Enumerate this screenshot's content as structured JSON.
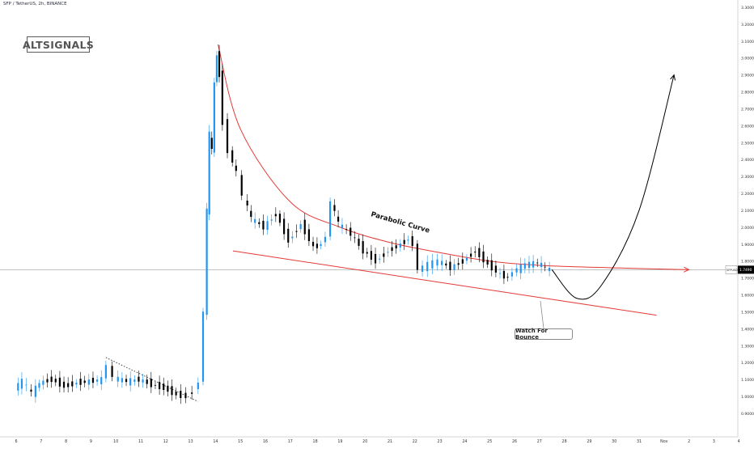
{
  "symbol_title": "SFP / TetherUS, 2h, BINANCE",
  "brand_label": "ALTSIGNALS",
  "annotations": {
    "curve_label": "Parabolic Curve",
    "callout_label": "Watch For Bounce"
  },
  "price_tag": {
    "symbol": "SFPUSDT",
    "price": "1.7490"
  },
  "colors": {
    "background": "#ffffff",
    "candle_up": "#2196f3",
    "candle_down": "#000000",
    "trendline": "#e53935",
    "projection": "#000000",
    "axis_text": "#333333",
    "price_tag_bg": "#000000"
  },
  "chart_data": {
    "type": "candlestick",
    "title": "SFP / TetherUS, 2h, BINANCE",
    "ylim": [
      0.8,
      3.3
    ],
    "y_ticks": [
      "0.9000",
      "1.0000",
      "1.1000",
      "1.2000",
      "1.3000",
      "1.4000",
      "1.5000",
      "1.6000",
      "1.7000",
      "1.8000",
      "1.9000",
      "2.0000",
      "2.1000",
      "2.2000",
      "2.3000",
      "2.4000",
      "2.5000",
      "2.6000",
      "2.7000",
      "2.8000",
      "2.9000",
      "3.0000",
      "3.1000",
      "3.2000",
      "3.3000"
    ],
    "x_ticks": [
      "6",
      "7",
      "8",
      "9",
      "10",
      "11",
      "12",
      "13",
      "14",
      "15",
      "16",
      "17",
      "18",
      "19",
      "20",
      "21",
      "22",
      "23",
      "24",
      "25",
      "26",
      "27",
      "28",
      "29",
      "30",
      "31",
      "Nov",
      "2",
      "3",
      "4"
    ],
    "grid": false,
    "last_price": 1.749,
    "series_close": [
      {
        "x": 0.0,
        "y": 1.05
      },
      {
        "x": 0.3,
        "y": 1.09
      },
      {
        "x": 0.7,
        "y": 1.02
      },
      {
        "x": 1.0,
        "y": 1.08
      },
      {
        "x": 1.5,
        "y": 1.1
      },
      {
        "x": 2.0,
        "y": 1.06
      },
      {
        "x": 2.5,
        "y": 1.08
      },
      {
        "x": 3.0,
        "y": 1.09
      },
      {
        "x": 3.5,
        "y": 1.1
      },
      {
        "x": 3.7,
        "y": 1.19
      },
      {
        "x": 4.0,
        "y": 1.11
      },
      {
        "x": 4.5,
        "y": 1.09
      },
      {
        "x": 5.0,
        "y": 1.1
      },
      {
        "x": 5.5,
        "y": 1.07
      },
      {
        "x": 6.0,
        "y": 1.05
      },
      {
        "x": 6.5,
        "y": 1.01
      },
      {
        "x": 6.9,
        "y": 1.0
      },
      {
        "x": 7.2,
        "y": 1.03
      },
      {
        "x": 7.4,
        "y": 1.09
      },
      {
        "x": 7.6,
        "y": 1.5
      },
      {
        "x": 7.7,
        "y": 2.1
      },
      {
        "x": 7.8,
        "y": 2.55
      },
      {
        "x": 7.9,
        "y": 2.45
      },
      {
        "x": 8.0,
        "y": 2.85
      },
      {
        "x": 8.1,
        "y": 3.02
      },
      {
        "x": 8.2,
        "y": 2.9
      },
      {
        "x": 8.35,
        "y": 2.62
      },
      {
        "x": 8.6,
        "y": 2.45
      },
      {
        "x": 8.9,
        "y": 2.32
      },
      {
        "x": 9.2,
        "y": 2.18
      },
      {
        "x": 9.5,
        "y": 2.05
      },
      {
        "x": 10.0,
        "y": 2.0
      },
      {
        "x": 10.5,
        "y": 2.08
      },
      {
        "x": 11.0,
        "y": 1.92
      },
      {
        "x": 11.5,
        "y": 2.02
      },
      {
        "x": 12.0,
        "y": 1.88
      },
      {
        "x": 12.3,
        "y": 1.9
      },
      {
        "x": 12.5,
        "y": 1.95
      },
      {
        "x": 12.7,
        "y": 2.15
      },
      {
        "x": 13.0,
        "y": 2.02
      },
      {
        "x": 13.5,
        "y": 1.96
      },
      {
        "x": 14.0,
        "y": 1.86
      },
      {
        "x": 14.5,
        "y": 1.8
      },
      {
        "x": 15.0,
        "y": 1.86
      },
      {
        "x": 15.5,
        "y": 1.9
      },
      {
        "x": 15.8,
        "y": 1.93
      },
      {
        "x": 16.0,
        "y": 1.9
      },
      {
        "x": 16.2,
        "y": 1.75
      },
      {
        "x": 16.6,
        "y": 1.78
      },
      {
        "x": 17.0,
        "y": 1.8
      },
      {
        "x": 17.5,
        "y": 1.76
      },
      {
        "x": 18.0,
        "y": 1.8
      },
      {
        "x": 18.5,
        "y": 1.86
      },
      {
        "x": 19.0,
        "y": 1.78
      },
      {
        "x": 19.5,
        "y": 1.72
      },
      {
        "x": 19.8,
        "y": 1.7
      },
      {
        "x": 20.0,
        "y": 1.74
      },
      {
        "x": 20.5,
        "y": 1.78
      },
      {
        "x": 21.0,
        "y": 1.79
      },
      {
        "x": 21.3,
        "y": 1.76
      },
      {
        "x": 21.5,
        "y": 1.749
      }
    ],
    "overlays": [
      {
        "type": "line",
        "label": "",
        "points": [
          [
            3.6,
            1.23
          ],
          [
            7.3,
            0.97
          ]
        ],
        "style": "dotted"
      },
      {
        "type": "curve",
        "label": "Parabolic Curve",
        "points": [
          [
            8.1,
            3.08
          ],
          [
            9.0,
            2.58
          ],
          [
            11.0,
            2.15
          ],
          [
            13.0,
            2.0
          ],
          [
            15.0,
            1.91
          ],
          [
            17.0,
            1.85
          ],
          [
            19.0,
            1.8
          ],
          [
            21.0,
            1.775
          ],
          [
            24.0,
            1.76
          ],
          [
            27.0,
            1.749
          ]
        ]
      },
      {
        "type": "line",
        "label": "",
        "points": [
          [
            8.7,
            1.86
          ],
          [
            25.7,
            1.48
          ]
        ]
      },
      {
        "type": "projection",
        "label": "",
        "points": [
          [
            21.5,
            1.749
          ],
          [
            22.5,
            1.58
          ],
          [
            23.5,
            1.66
          ],
          [
            25.0,
            2.1
          ],
          [
            26.4,
            2.9
          ]
        ]
      }
    ],
    "annotation_texts": [
      "Parabolic Curve",
      "Watch For Bounce"
    ]
  }
}
